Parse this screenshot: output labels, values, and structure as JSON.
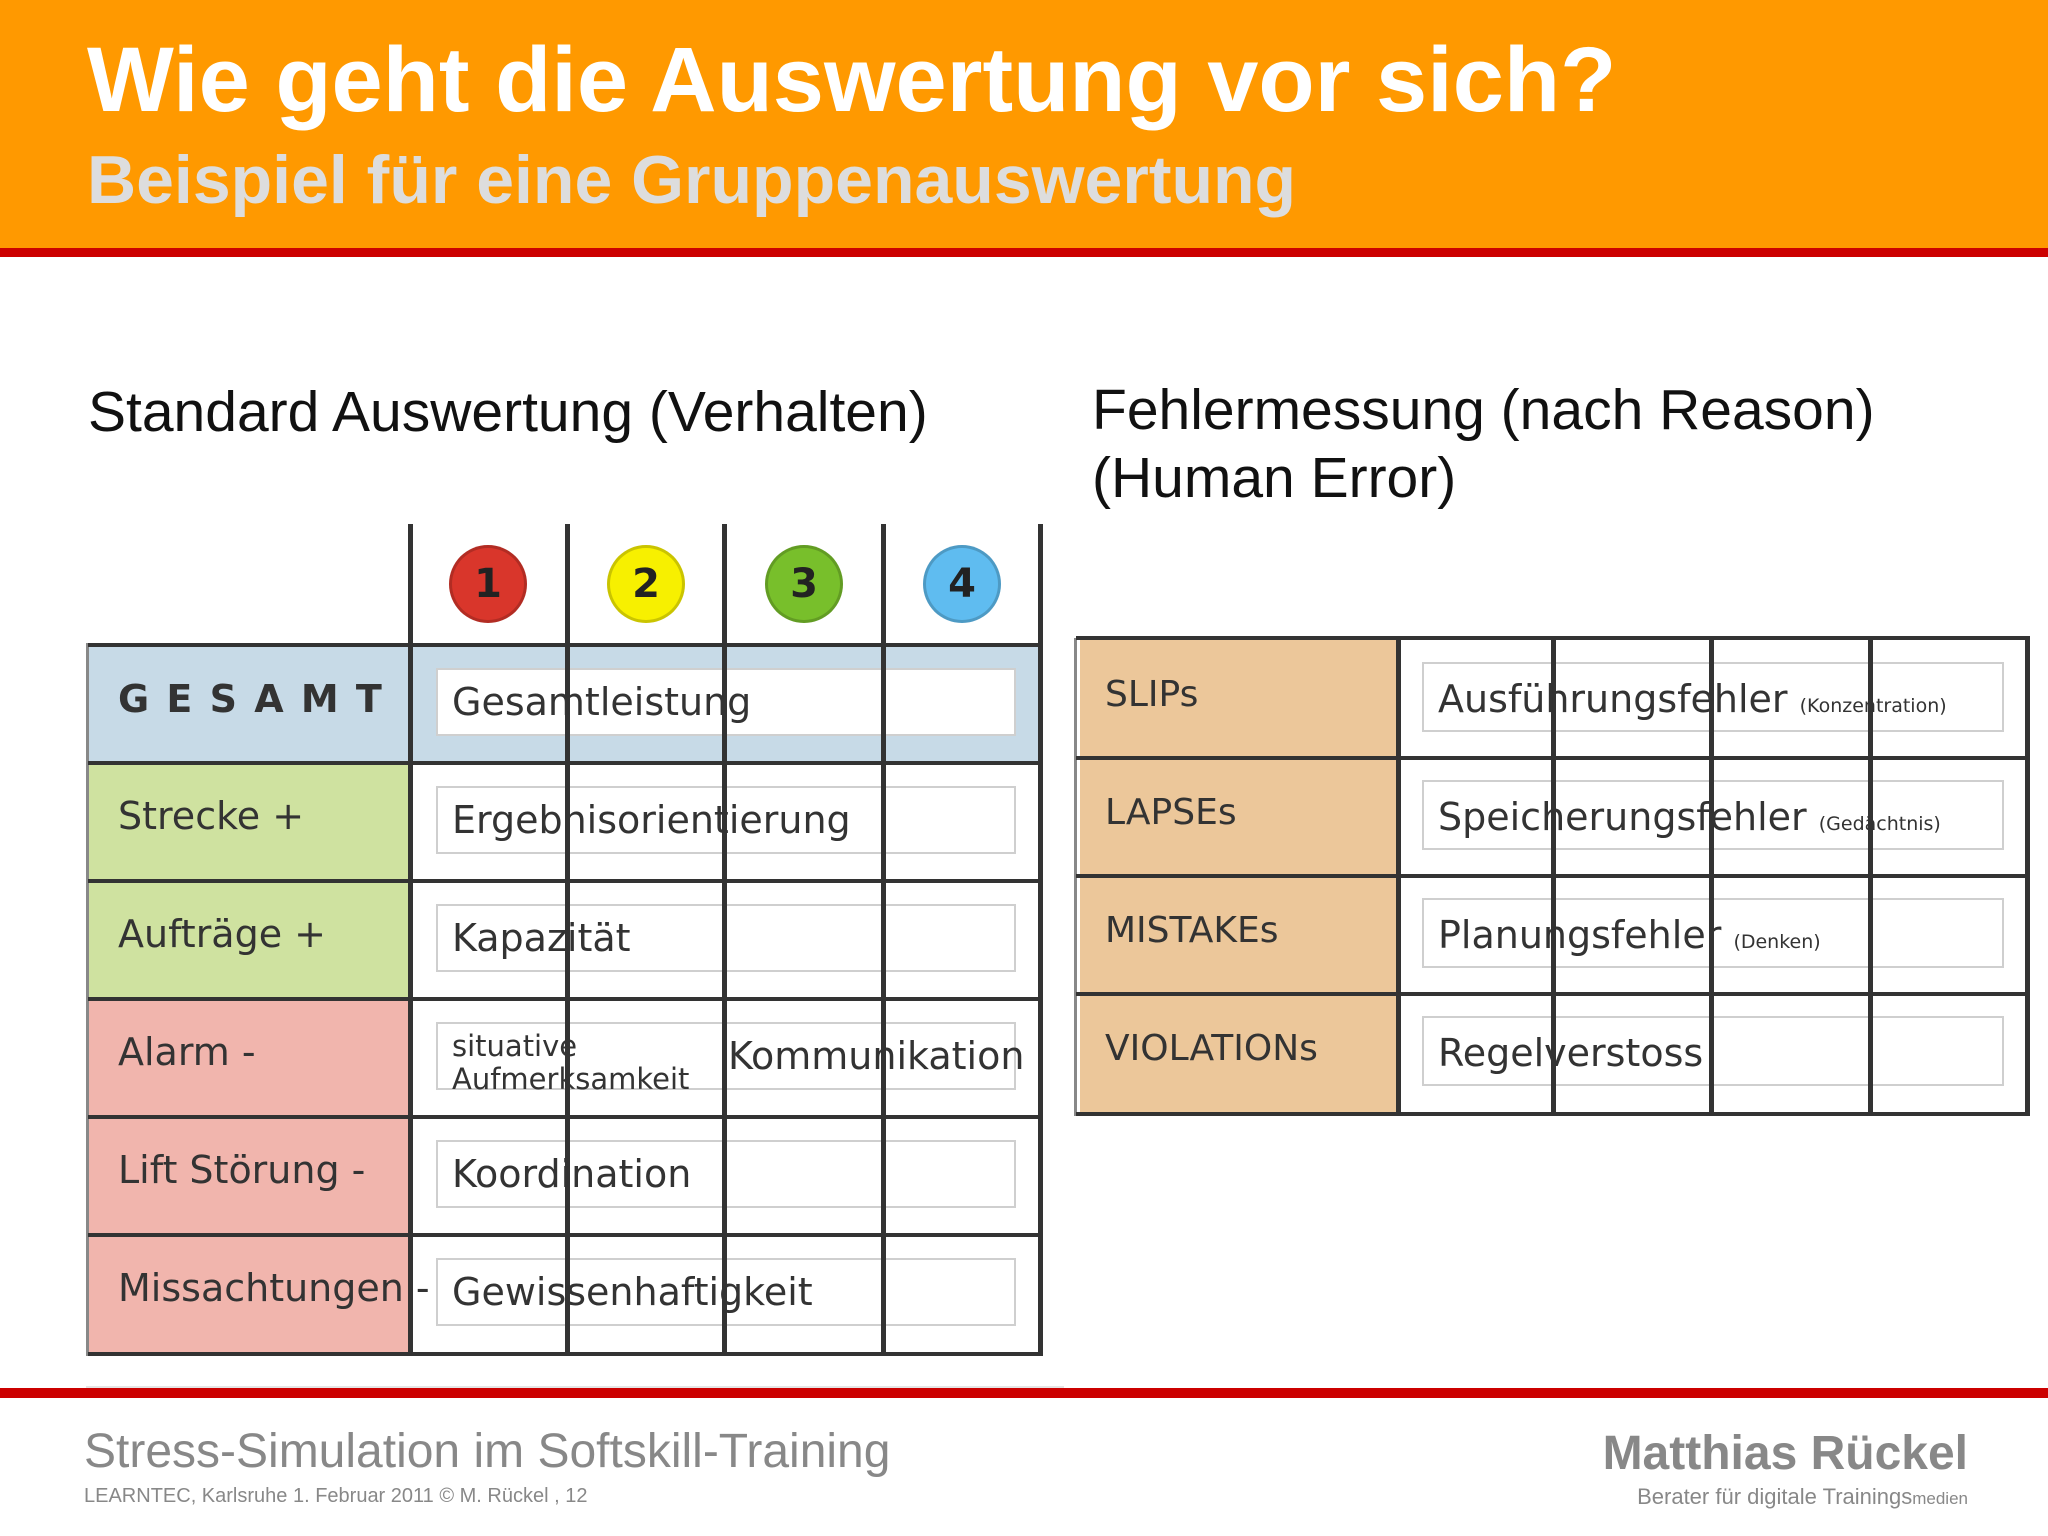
{
  "header": {
    "title": "Wie geht die Auswertung vor sich?",
    "subtitle": "Beispiel für eine Gruppenauswertung"
  },
  "left": {
    "heading": "Standard Auswertung (Verhalten)",
    "scale": [
      "1",
      "2",
      "3",
      "4"
    ],
    "scale_colors": [
      "#d9362b",
      "#f7f000",
      "#78bf2b",
      "#5fbcf0"
    ],
    "rows": [
      {
        "label": "G E S A M T",
        "value": "Gesamtleistung",
        "color": "#c7dae7"
      },
      {
        "label": "Strecke +",
        "value": "Ergebnisorientierung",
        "color": "#cfe2a0"
      },
      {
        "label": "Aufträge +",
        "value": "Kapazität",
        "color": "#cfe2a0"
      },
      {
        "label": "Alarm -",
        "value": "situative Aufmerksamkeit",
        "value_line1": "situative",
        "value_line2": "Aufmerksamkeit",
        "value2": "Kommunikation",
        "color": "#f1b5ad"
      },
      {
        "label": "Lift Störung -",
        "value": "Koordination",
        "color": "#f1b5ad"
      },
      {
        "label": "Missachtungen -",
        "value": "Gewissenhaftigkeit",
        "color": "#f1b5ad"
      }
    ]
  },
  "right": {
    "heading_line1": "Fehlermessung (nach Reason)",
    "heading_line2": "(Human Error)",
    "row_color": "#ecc79a",
    "rows": [
      {
        "label": "SLIPs",
        "value": "Ausführungsfehler",
        "note": "(Konzentration)"
      },
      {
        "label": "LAPSEs",
        "value": "Speicherungsfehler",
        "note": "(Gedächtnis)"
      },
      {
        "label": "MISTAKEs",
        "value": "Planungsfehler",
        "note": "(Denken)"
      },
      {
        "label": "VIOLATIONs",
        "value": "Regelverstoss",
        "note": ""
      }
    ]
  },
  "footer": {
    "title": "Stress-Simulation im Softskill-Training",
    "info": "LEARNTEC, Karlsruhe   1. Februar 2011 ©  M. Rückel , 12",
    "author": "Matthias Rückel",
    "role_main": "Berater  für digitale  Trainings",
    "role_small": "medien"
  },
  "colors": {
    "header_bg": "#ff9900",
    "rule": "#cc0000"
  }
}
